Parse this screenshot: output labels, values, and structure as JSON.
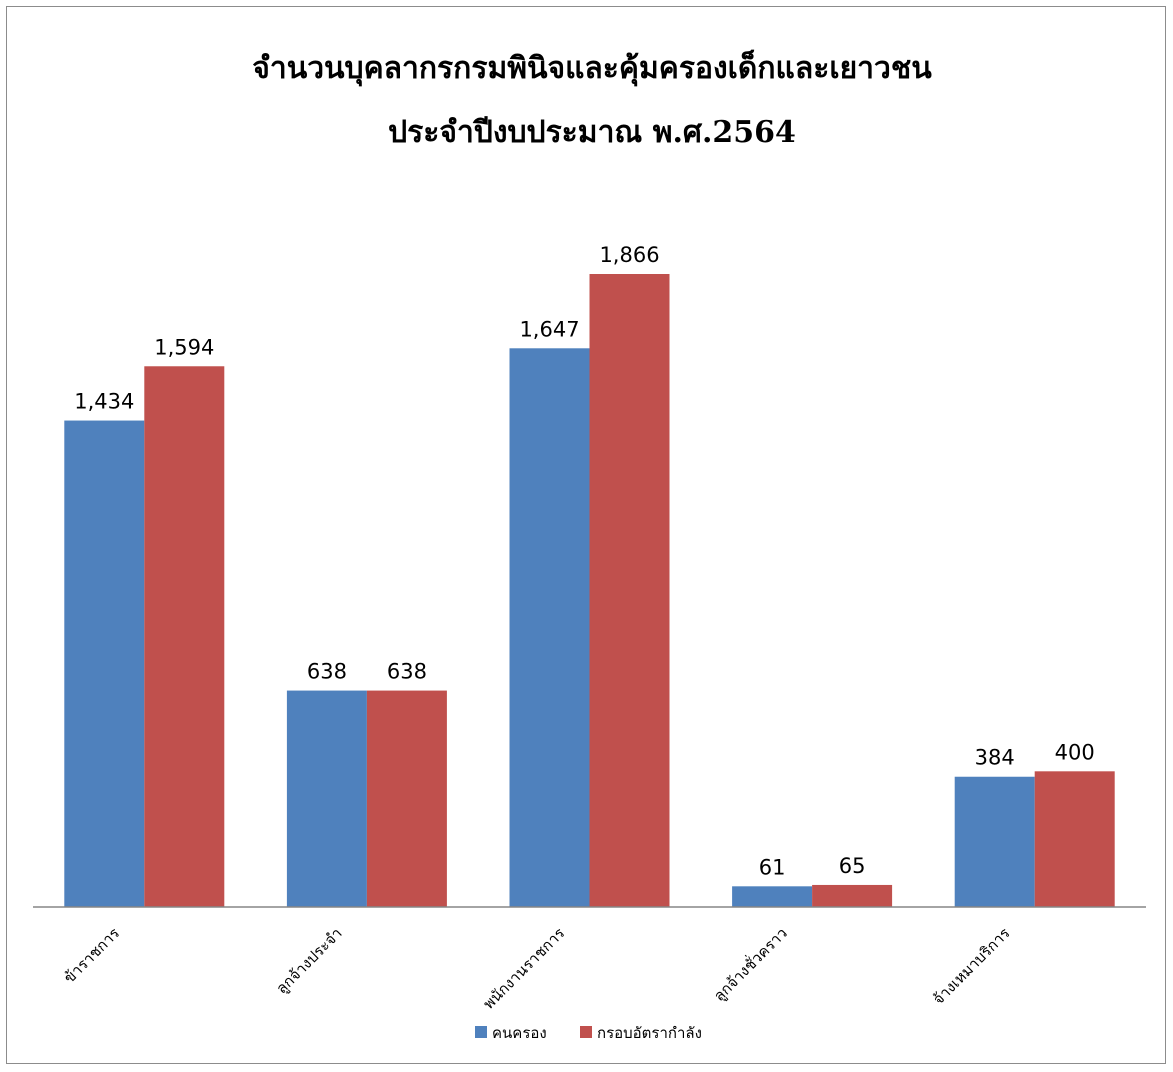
{
  "chart_data": {
    "type": "bar",
    "title": "จำนวนบุคลากรกรมพินิจและคุ้มครองเด็กและเยาวชน",
    "subtitle": "ประจำปีงบประมาณ พ.ศ.2564",
    "categories": [
      "ข้าราชการ",
      "ลูกจ้างประจำ",
      "พนักงานราชการ",
      "ลูกจ้างชั่วคราว",
      "จ้างเหมาบริการ"
    ],
    "series": [
      {
        "name": "คนครอง",
        "color": "#4F81BD",
        "values": [
          1434,
          638,
          1647,
          61,
          384
        ],
        "labels": [
          "1,434",
          "638",
          "1,647",
          "61",
          "384"
        ]
      },
      {
        "name": "กรอบอัตรากำลัง",
        "color": "#C0504D",
        "values": [
          1594,
          638,
          1866,
          65,
          400
        ],
        "labels": [
          "1,594",
          "638",
          "1,866",
          "65",
          "400"
        ]
      }
    ],
    "ylim": [
      0,
      2100
    ],
    "grid": false,
    "legend_position": "bottom",
    "xlabel": "",
    "ylabel": ""
  }
}
